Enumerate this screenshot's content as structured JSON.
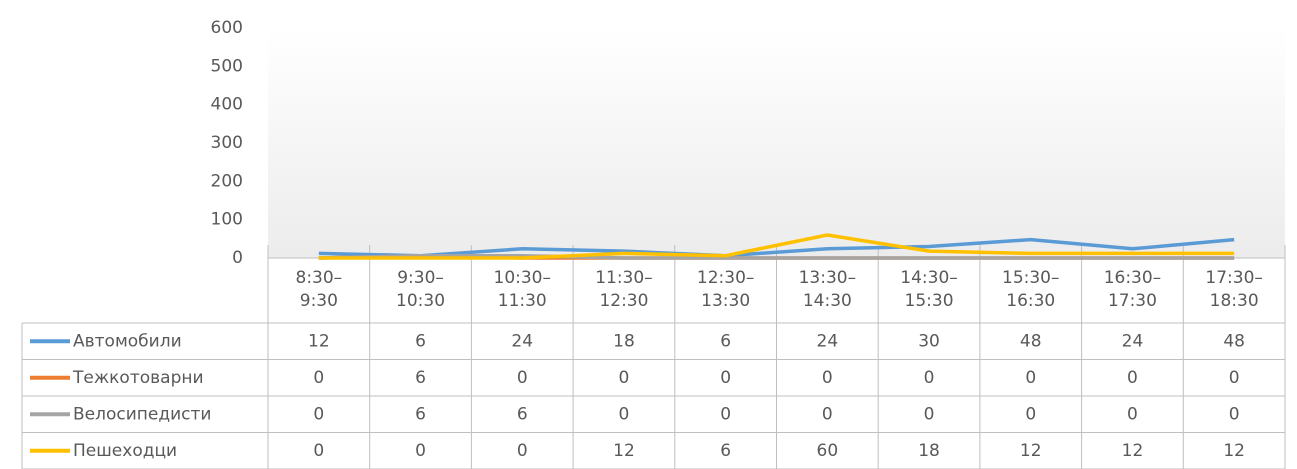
{
  "chart_data": {
    "type": "line",
    "categories": [
      "8:30–9:30",
      "9:30–10:30",
      "10:30–11:30",
      "11:30–12:30",
      "12:30–13:30",
      "13:30–14:30",
      "14:30–15:30",
      "15:30–16:30",
      "16:30–17:30",
      "17:30–18:30"
    ],
    "series": [
      {
        "name": "Автомобили",
        "color": "#5b9bd5",
        "values": [
          12,
          6,
          24,
          18,
          6,
          24,
          30,
          48,
          24,
          48
        ]
      },
      {
        "name": "Тежкотоварни",
        "color": "#ed7d31",
        "values": [
          0,
          6,
          0,
          0,
          0,
          0,
          0,
          0,
          0,
          0
        ]
      },
      {
        "name": "Велосипедисти",
        "color": "#a5a5a5",
        "values": [
          0,
          6,
          6,
          0,
          0,
          0,
          0,
          0,
          0,
          0
        ]
      },
      {
        "name": "Пешеходци",
        "color": "#ffc000",
        "values": [
          0,
          0,
          0,
          12,
          6,
          60,
          18,
          12,
          12,
          12
        ]
      }
    ],
    "ylim": [
      0,
      600
    ],
    "yticks": [
      0,
      100,
      200,
      300,
      400,
      500,
      600
    ],
    "grid": false
  }
}
